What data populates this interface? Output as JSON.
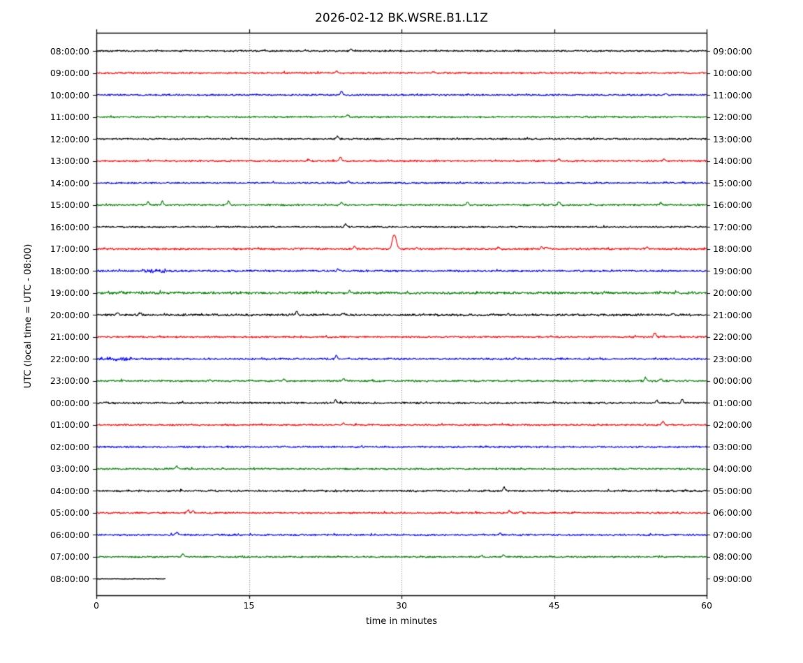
{
  "title": "2026-02-12 BK.WSRE.B1.L1Z",
  "axes": {
    "xlabel": "time in minutes",
    "ylabel": "UTC (local time = UTC - 08:00)",
    "x_tick_labels": [
      "0",
      "15",
      "30",
      "45",
      "60"
    ]
  },
  "chart_data": {
    "type": "line",
    "subtype": "helicorder-dayplot",
    "title": "2026-02-12 BK.WSRE.B1.L1Z",
    "xlabel": "time in minutes",
    "ylabel": "UTC (local time = UTC - 08:00)",
    "x_range_minutes": [
      0,
      60
    ],
    "x_ticks": [
      0,
      15,
      30,
      45,
      60
    ],
    "grid": "vertical dotted lines at 15, 30, 45 minutes",
    "trace_color_cycle": [
      "#000000",
      "#ff0000",
      "#0000ff",
      "#008000"
    ],
    "rows": [
      {
        "utc_start": "08:00:00",
        "utc_end": "09:00:00",
        "color": "#000000",
        "noise": 0.9,
        "duration_min": 60,
        "spikes": [
          {
            "t": 25.0,
            "amp": 3
          }
        ]
      },
      {
        "utc_start": "09:00:00",
        "utc_end": "10:00:00",
        "color": "#ff0000",
        "noise": 0.9,
        "duration_min": 60,
        "spikes": [
          {
            "t": 23.6,
            "amp": 3
          },
          {
            "t": 33.2,
            "amp": 2
          }
        ]
      },
      {
        "utc_start": "10:00:00",
        "utc_end": "11:00:00",
        "color": "#0000ff",
        "noise": 0.9,
        "duration_min": 60,
        "spikes": [
          {
            "t": 24.1,
            "amp": 5
          },
          {
            "t": 56.0,
            "amp": 2
          }
        ]
      },
      {
        "utc_start": "11:00:00",
        "utc_end": "12:00:00",
        "color": "#008000",
        "noise": 0.9,
        "duration_min": 60,
        "spikes": [
          {
            "t": 24.7,
            "amp": 3
          }
        ]
      },
      {
        "utc_start": "12:00:00",
        "utc_end": "13:00:00",
        "color": "#000000",
        "noise": 0.9,
        "duration_min": 60,
        "spikes": [
          {
            "t": 23.7,
            "amp": 4
          }
        ]
      },
      {
        "utc_start": "13:00:00",
        "utc_end": "14:00:00",
        "color": "#ff0000",
        "noise": 0.9,
        "duration_min": 60,
        "spikes": [
          {
            "t": 20.9,
            "amp": 2
          },
          {
            "t": 24.0,
            "amp": 6
          },
          {
            "t": 45.5,
            "amp": 3
          },
          {
            "t": 55.8,
            "amp": 3
          }
        ]
      },
      {
        "utc_start": "14:00:00",
        "utc_end": "15:00:00",
        "color": "#0000ff",
        "noise": 0.9,
        "duration_min": 60,
        "spikes": [
          {
            "t": 24.8,
            "amp": 3
          }
        ]
      },
      {
        "utc_start": "15:00:00",
        "utc_end": "16:00:00",
        "color": "#008000",
        "noise": 1.0,
        "duration_min": 60,
        "spikes": [
          {
            "t": 5.1,
            "amp": 4
          },
          {
            "t": 6.5,
            "amp": 5
          },
          {
            "t": 13.0,
            "amp": 5
          },
          {
            "t": 24.1,
            "amp": 4
          },
          {
            "t": 36.5,
            "amp": 4
          },
          {
            "t": 45.5,
            "amp": 5
          },
          {
            "t": 55.5,
            "amp": 3
          }
        ]
      },
      {
        "utc_start": "16:00:00",
        "utc_end": "17:00:00",
        "color": "#000000",
        "noise": 0.9,
        "duration_min": 60,
        "spikes": [
          {
            "t": 24.5,
            "amp": 4
          }
        ]
      },
      {
        "utc_start": "17:00:00",
        "utc_end": "18:00:00",
        "color": "#ff0000",
        "noise": 1.0,
        "duration_min": 60,
        "spikes": [
          {
            "t": 25.4,
            "amp": 4
          },
          {
            "t": 29.3,
            "amp": 21,
            "w": 0.22
          },
          {
            "t": 31.5,
            "amp": 2
          },
          {
            "t": 39.5,
            "amp": 2
          },
          {
            "t": 43.8,
            "amp": 3
          },
          {
            "t": 44.3,
            "amp": 3
          },
          {
            "t": 54.1,
            "amp": 2
          }
        ]
      },
      {
        "utc_start": "18:00:00",
        "utc_end": "19:00:00",
        "color": "#0000ff",
        "noise": 1.0,
        "duration_min": 60,
        "noise_segments": [
          {
            "from": 4.5,
            "to": 7.5,
            "amp": 2.2
          }
        ],
        "spikes": [
          {
            "t": 23.8,
            "amp": 3
          }
        ]
      },
      {
        "utc_start": "19:00:00",
        "utc_end": "20:00:00",
        "color": "#008000",
        "noise": 1.4,
        "duration_min": 60,
        "spikes": [
          {
            "t": 2.5,
            "amp": 2
          },
          {
            "t": 25.0,
            "amp": 2
          },
          {
            "t": 55.5,
            "amp": 2
          },
          {
            "t": 57.0,
            "amp": 2
          }
        ]
      },
      {
        "utc_start": "20:00:00",
        "utc_end": "21:00:00",
        "color": "#000000",
        "noise": 1.2,
        "duration_min": 60,
        "spikes": [
          {
            "t": 2.1,
            "amp": 3
          },
          {
            "t": 4.3,
            "amp": 3
          },
          {
            "t": 19.7,
            "amp": 5
          },
          {
            "t": 24.3,
            "amp": 2
          },
          {
            "t": 40.5,
            "amp": 2
          },
          {
            "t": 56.7,
            "amp": 3
          }
        ]
      },
      {
        "utc_start": "21:00:00",
        "utc_end": "22:00:00",
        "color": "#ff0000",
        "noise": 0.9,
        "duration_min": 60,
        "spikes": [
          {
            "t": 54.9,
            "amp": 6
          }
        ]
      },
      {
        "utc_start": "22:00:00",
        "utc_end": "23:00:00",
        "color": "#0000ff",
        "noise": 1.0,
        "duration_min": 60,
        "noise_segments": [
          {
            "from": 0,
            "to": 3.5,
            "amp": 2.0
          }
        ],
        "spikes": [
          {
            "t": 23.6,
            "amp": 5
          },
          {
            "t": 41.2,
            "amp": 2
          }
        ]
      },
      {
        "utc_start": "23:00:00",
        "utc_end": "00:00:00",
        "color": "#008000",
        "noise": 1.0,
        "duration_min": 60,
        "spikes": [
          {
            "t": 11.2,
            "amp": 2
          },
          {
            "t": 18.4,
            "amp": 3
          },
          {
            "t": 24.3,
            "amp": 3
          },
          {
            "t": 54.0,
            "amp": 4
          },
          {
            "t": 55.5,
            "amp": 3
          }
        ]
      },
      {
        "utc_start": "00:00:00",
        "utc_end": "01:00:00",
        "color": "#000000",
        "noise": 1.0,
        "duration_min": 60,
        "spikes": [
          {
            "t": 23.5,
            "amp": 4
          },
          {
            "t": 55.1,
            "amp": 3
          },
          {
            "t": 57.6,
            "amp": 6
          }
        ]
      },
      {
        "utc_start": "01:00:00",
        "utc_end": "02:00:00",
        "color": "#ff0000",
        "noise": 0.9,
        "duration_min": 60,
        "spikes": [
          {
            "t": 24.3,
            "amp": 3
          },
          {
            "t": 55.7,
            "amp": 5
          }
        ]
      },
      {
        "utc_start": "02:00:00",
        "utc_end": "03:00:00",
        "color": "#0000ff",
        "noise": 0.9,
        "duration_min": 60,
        "spikes": []
      },
      {
        "utc_start": "03:00:00",
        "utc_end": "04:00:00",
        "color": "#008000",
        "noise": 0.9,
        "duration_min": 60,
        "spikes": [
          {
            "t": 7.9,
            "amp": 4
          }
        ]
      },
      {
        "utc_start": "04:00:00",
        "utc_end": "05:00:00",
        "color": "#000000",
        "noise": 1.0,
        "duration_min": 60,
        "spikes": [
          {
            "t": 40.1,
            "amp": 5
          }
        ]
      },
      {
        "utc_start": "05:00:00",
        "utc_end": "06:00:00",
        "color": "#ff0000",
        "noise": 0.9,
        "duration_min": 60,
        "spikes": [
          {
            "t": 9.0,
            "amp": 4
          },
          {
            "t": 9.5,
            "amp": 3
          },
          {
            "t": 40.6,
            "amp": 3
          },
          {
            "t": 41.7,
            "amp": 2
          }
        ]
      },
      {
        "utc_start": "06:00:00",
        "utc_end": "07:00:00",
        "color": "#0000ff",
        "noise": 0.9,
        "duration_min": 60,
        "spikes": [
          {
            "t": 7.9,
            "amp": 4
          },
          {
            "t": 39.7,
            "amp": 3
          }
        ]
      },
      {
        "utc_start": "07:00:00",
        "utc_end": "08:00:00",
        "color": "#008000",
        "noise": 0.9,
        "duration_min": 60,
        "spikes": [
          {
            "t": 8.5,
            "amp": 4
          },
          {
            "t": 37.9,
            "amp": 2
          },
          {
            "t": 40.0,
            "amp": 3
          }
        ]
      },
      {
        "utc_start": "08:00:00",
        "utc_end": "09:00:00",
        "color": "#000000",
        "noise": 0.25,
        "duration_min": 6.8,
        "spikes": []
      }
    ]
  }
}
